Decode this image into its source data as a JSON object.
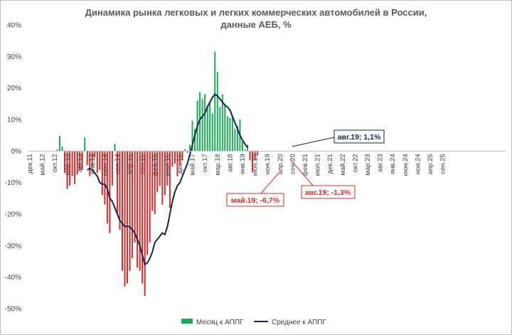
{
  "chart_data": {
    "type": "bar",
    "title": [
      "Динамика рынка легковых и легких коммерческих автомобилей в России,",
      "данные АЕБ, %"
    ],
    "ylim": [
      -50,
      40
    ],
    "yticks": [
      "-50%",
      "-40%",
      "-30%",
      "-20%",
      "-10%",
      "0%",
      "10%",
      "20%",
      "30%",
      "40%"
    ],
    "xticks": [
      "дек.11",
      "май.12",
      "окт.12",
      "мар.13",
      "авг.13",
      "янв.14",
      "июн.14",
      "ноя.14",
      "апр.15",
      "сен.15",
      "фев.16",
      "июл.16",
      "дек.16",
      "май.17",
      "окт.17",
      "мар.18",
      "авг.18",
      "янв.19",
      "июн.19",
      "ноя.19",
      "апр.20",
      "сен.20",
      "фев.21",
      "июл.21",
      "дек.21",
      "май.22",
      "окт.22",
      "мар.23",
      "авг.23",
      "янв.24",
      "июн.24",
      "ноя.24",
      "апр.25",
      "сен.25"
    ],
    "positive_color": "#1aaa55",
    "negative_color": "#d62b2b",
    "line_color": "#102750",
    "series": [
      {
        "name": "Месяц к АППГ",
        "values": [
          0,
          0,
          0,
          0,
          0,
          0,
          0,
          0,
          0,
          0,
          0,
          0.5,
          4.8,
          1.4,
          -7,
          -12,
          -11,
          -8,
          -10.5,
          -7.5,
          -6,
          -6,
          4.3,
          -4.5,
          -8,
          -5,
          -2,
          -7,
          -6,
          -14,
          -17,
          -23,
          -26,
          -11,
          2.3,
          -20,
          -25,
          -38,
          -43,
          -42,
          -38,
          -34,
          -29,
          -37,
          -38,
          -42,
          -46,
          -33,
          -29,
          -19,
          -20,
          -13,
          -11,
          -17,
          -14,
          -11,
          -18,
          -5,
          -4,
          -8,
          -4.2,
          -3,
          0.5,
          -0.5,
          2,
          9.6,
          7,
          16,
          18.7,
          16.5,
          18,
          14.5,
          15.5,
          12,
          31.5,
          25,
          14,
          18,
          15,
          11,
          10.5,
          11,
          7,
          8,
          10,
          3,
          0.5,
          2,
          -3,
          -6.7,
          -3,
          -1.3
        ]
      },
      {
        "name": "Среднее к АППГ",
        "values": [
          null,
          null,
          null,
          null,
          null,
          null,
          null,
          null,
          null,
          null,
          null,
          null,
          null,
          null,
          null,
          null,
          null,
          null,
          null,
          null,
          null,
          null,
          null,
          -6,
          -5.5,
          -6,
          -7,
          -8,
          -10,
          -10.5,
          -10.5,
          -12,
          -15,
          -16,
          -18,
          -20,
          -22,
          -23,
          -24,
          -23.8,
          -24,
          -25,
          -26,
          -28,
          -30,
          -33,
          -36,
          -35.5,
          -34,
          -32,
          -29,
          -28,
          -27,
          -26,
          -26.5,
          -24,
          -20,
          -16,
          -13,
          -11,
          -10,
          -8,
          -6,
          -4,
          -1,
          2,
          5,
          8,
          10,
          11,
          12,
          14,
          15.5,
          17,
          18,
          17.5,
          16.5,
          15.5,
          14.5,
          14,
          13,
          11,
          9,
          7,
          5,
          3.5,
          2.2,
          1.1
        ]
      }
    ],
    "legend": [
      "Месяц к АППГ",
      "Среднее к АППГ"
    ],
    "annotations": [
      {
        "text": "авг.19; 1,1%",
        "color": "#102750"
      },
      {
        "text": "май.19; -6,7%",
        "color": "#d62b2b"
      },
      {
        "text": "авг.19; -1,3%",
        "color": "#d62b2b"
      }
    ]
  }
}
